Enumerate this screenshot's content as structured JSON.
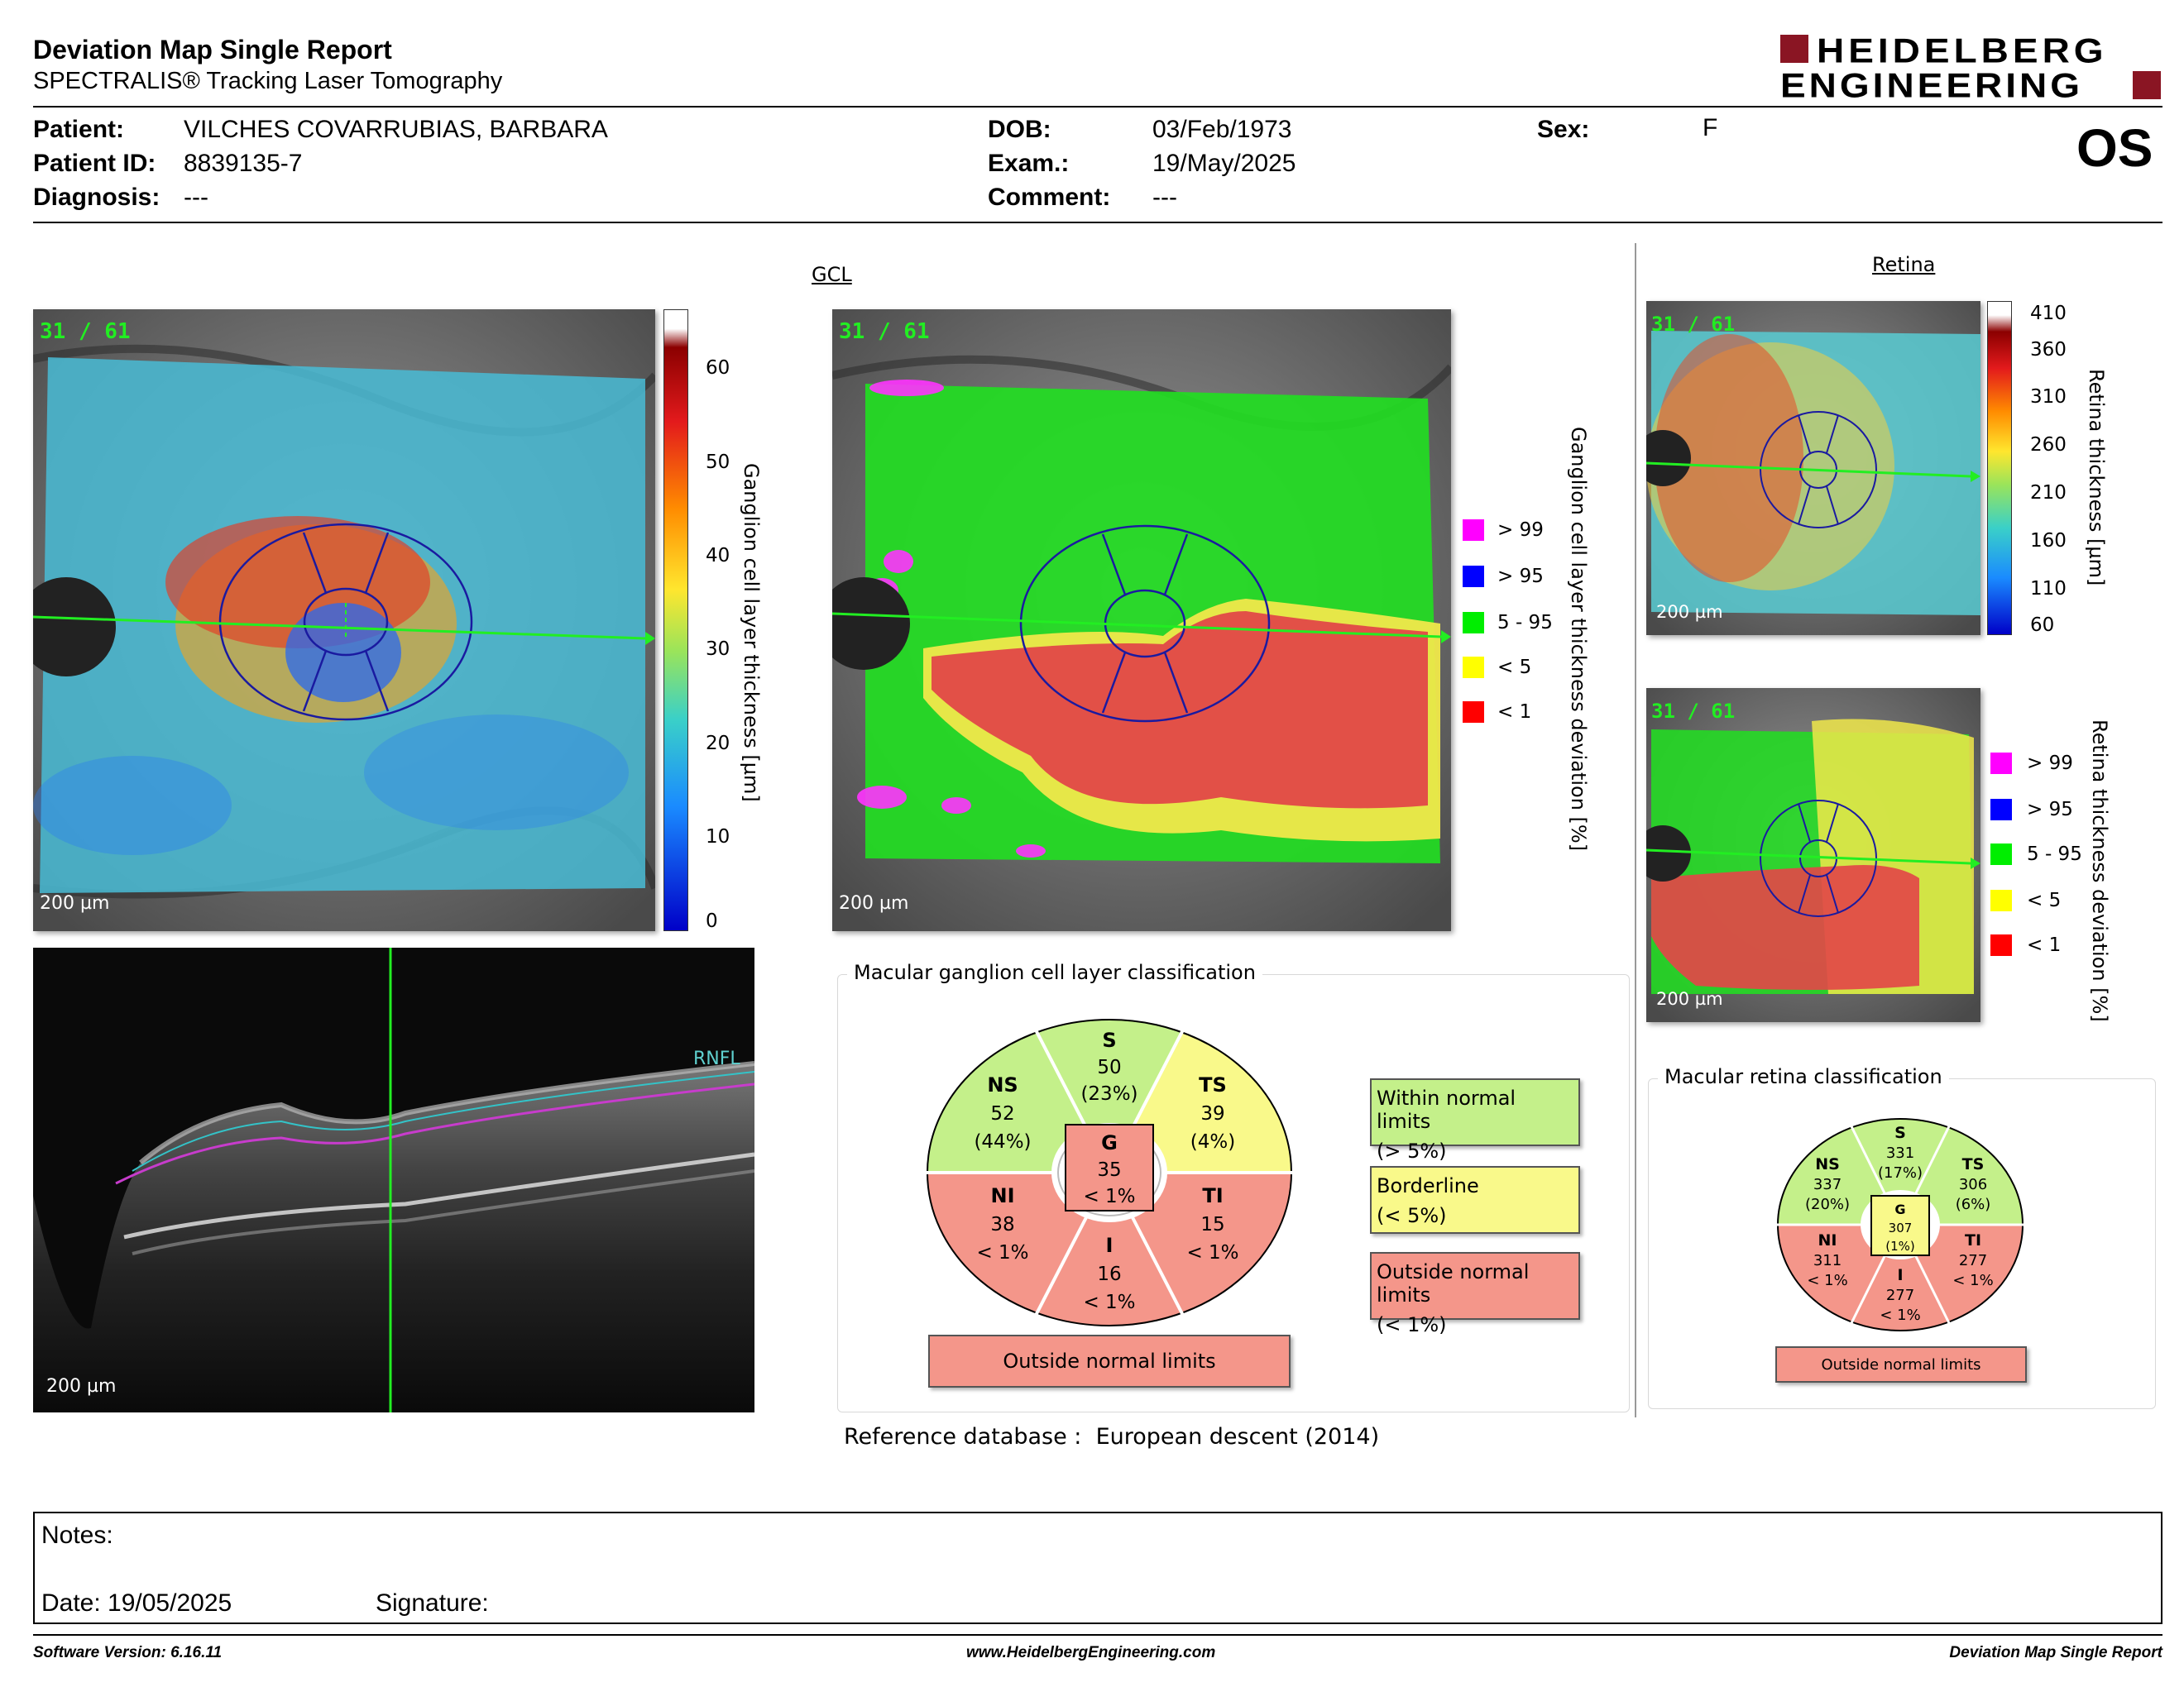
{
  "header": {
    "title": "Deviation Map Single Report",
    "subtitle": "SPECTRALIS® Tracking Laser Tomography",
    "logo_line1": "HEIDELBERG",
    "logo_line2": "ENGINEERING",
    "eye": "OS"
  },
  "patient": {
    "patient_label": "Patient:",
    "patient_value": "VILCHES COVARRUBIAS, BARBARA",
    "id_label": "Patient ID:",
    "id_value": "8839135-7",
    "diagnosis_label": "Diagnosis:",
    "diagnosis_value": "---",
    "dob_label": "DOB:",
    "dob_value": "03/Feb/1973",
    "exam_label": "Exam.:",
    "exam_value": "19/May/2025",
    "comment_label": "Comment:",
    "comment_value": "---",
    "sex_label": "Sex:",
    "sex_value": "F"
  },
  "gcl": {
    "section_title": "GCL",
    "scan_counter": "31 / 61",
    "scale_bar": "200 µm",
    "thickness_axis_label": "Ganglion cell layer thickness [µm]",
    "thickness_ticks": [
      "60",
      "50",
      "40",
      "30",
      "20",
      "10",
      "0"
    ],
    "deviation_axis_label": "Ganglion cell layer thickness deviation [%]",
    "deviation_legend": [
      {
        "label": "> 99",
        "color": "#ff00ff"
      },
      {
        "label": "> 95",
        "color": "#0000ff"
      },
      {
        "label": "5 - 95",
        "color": "#00ee00"
      },
      {
        "label": "< 5",
        "color": "#ffff00"
      },
      {
        "label": "< 1",
        "color": "#ff0000"
      }
    ]
  },
  "bscan": {
    "scale_bar": "200 µm",
    "layer_label": "RNFL"
  },
  "retina": {
    "section_title": "Retina",
    "scan_counter": "31 / 61",
    "scale_bar": "200 µm",
    "thickness_axis_label": "Retina thickness [µm]",
    "thickness_ticks": [
      "410",
      "360",
      "310",
      "260",
      "210",
      "160",
      "110",
      "60"
    ],
    "deviation_axis_label": "Retina thickness deviation [%]",
    "deviation_legend": [
      {
        "label": "> 99",
        "color": "#ff00ff"
      },
      {
        "label": "> 95",
        "color": "#0000ff"
      },
      {
        "label": "5 - 95",
        "color": "#00ee00"
      },
      {
        "label": "< 5",
        "color": "#ffff00"
      },
      {
        "label": "< 1",
        "color": "#ff0000"
      }
    ]
  },
  "gcl_classification": {
    "title": "Macular ganglion cell layer classification",
    "sectors": {
      "S": {
        "name": "S",
        "value": "50",
        "pct": "(23%)"
      },
      "NS": {
        "name": "NS",
        "value": "52",
        "pct": "(44%)"
      },
      "TS": {
        "name": "TS",
        "value": "39",
        "pct": "(4%)"
      },
      "NI": {
        "name": "NI",
        "value": "38",
        "pct": "< 1%"
      },
      "TI": {
        "name": "TI",
        "value": "15",
        "pct": "< 1%"
      },
      "I": {
        "name": "I",
        "value": "16",
        "pct": "< 1%"
      },
      "G": {
        "name": "G",
        "value": "35",
        "pct": "< 1%"
      }
    },
    "overall": "Outside normal limits",
    "legend": {
      "within_1": "Within normal limits",
      "within_2": "(> 5%)",
      "border_1": "Borderline",
      "border_2": "(< 5%)",
      "outside_1": "Outside normal limits",
      "outside_2": "(< 1%)"
    },
    "colors": {
      "within": "#c4f08a",
      "borderline": "#f9f98a",
      "outside": "#f4968a"
    }
  },
  "retina_classification": {
    "title": "Macular retina classification",
    "sectors": {
      "S": {
        "name": "S",
        "value": "331",
        "pct": "(17%)"
      },
      "NS": {
        "name": "NS",
        "value": "337",
        "pct": "(20%)"
      },
      "TS": {
        "name": "TS",
        "value": "306",
        "pct": "(6%)"
      },
      "NI": {
        "name": "NI",
        "value": "311",
        "pct": "< 1%"
      },
      "TI": {
        "name": "TI",
        "value": "277",
        "pct": "< 1%"
      },
      "I": {
        "name": "I",
        "value": "277",
        "pct": "< 1%"
      },
      "G": {
        "name": "G",
        "value": "307",
        "pct": "(1%)"
      }
    },
    "overall": "Outside normal limits"
  },
  "reference": {
    "label": "Reference database :",
    "value": "European descent (2014)"
  },
  "notes": {
    "notes_label": "Notes:",
    "date_label": "Date: 19/05/2025",
    "signature_label": "Signature:"
  },
  "footer": {
    "software": "Software Version: 6.16.11",
    "website": "www.HeidelbergEngineering.com",
    "report_name": "Deviation Map Single Report"
  }
}
